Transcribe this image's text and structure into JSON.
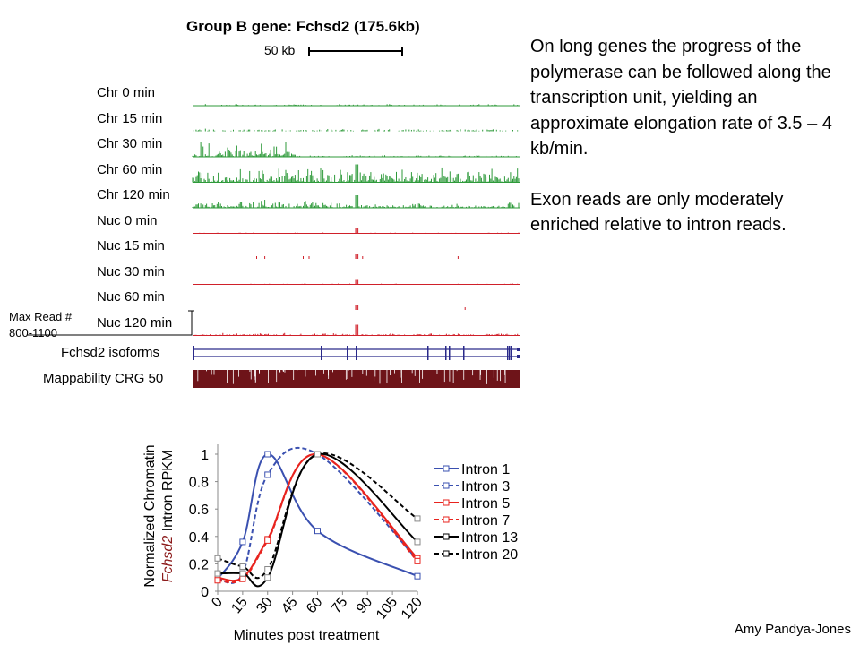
{
  "title": "Group B gene: Fchsd2 (175.6kb)",
  "scale_label": "50 kb",
  "description": [
    "On long genes the progress of the polymerase can be followed along the transcription unit, yielding an approximate elongation rate of 3.5 – 4 kb/min.",
    "Exon reads are only moderately enriched relative to intron reads."
  ],
  "tracks": [
    {
      "label": "Chr 0 min",
      "color": "#2e9a3a"
    },
    {
      "label": "Chr 15 min",
      "color": "#2e9a3a"
    },
    {
      "label": "Chr 30 min",
      "color": "#2e9a3a"
    },
    {
      "label": "Chr 60 min",
      "color": "#2e9a3a"
    },
    {
      "label": "Chr 120 min",
      "color": "#2e9a3a"
    },
    {
      "label": "Nuc 0 min",
      "color": "#d0202a"
    },
    {
      "label": "Nuc 15 min",
      "color": "#d0202a"
    },
    {
      "label": "Nuc 30 min",
      "color": "#d0202a"
    },
    {
      "label": "Nuc 60 min",
      "color": "#d0202a"
    },
    {
      "label": "Nuc 120 min",
      "color": "#d0202a"
    }
  ],
  "max_read_label": "Max Read #",
  "max_read_range": "800-1100",
  "isoforms_label": "Fchsd2 isoforms",
  "mappability_label": "Mappability CRG 50",
  "author": "Amy Pandya-Jones",
  "chart_data": {
    "type": "line",
    "ylabel_line1": "Normalized Chromatin",
    "ylabel_gene": "Fchsd2",
    "ylabel_rest": " Intron RPKM",
    "xlabel": "Minutes post treatment",
    "x": [
      0,
      15,
      30,
      60,
      120
    ],
    "xticks": [
      "0",
      "15",
      "30",
      "45",
      "60",
      "75",
      "90",
      "105",
      "120"
    ],
    "xtick_values": [
      0,
      15,
      30,
      45,
      60,
      75,
      90,
      105,
      120
    ],
    "yticks": [
      "0",
      "0.2",
      "0.4",
      "0.6",
      "0.8",
      "1"
    ],
    "ytick_values": [
      0,
      0.2,
      0.4,
      0.6,
      0.8,
      1
    ],
    "xlim": [
      0,
      120
    ],
    "ylim": [
      0,
      1.05
    ],
    "legend": "right",
    "series": [
      {
        "name": "Intron 1",
        "color": "#3a50b0",
        "dashed": false,
        "values": [
          0.09,
          0.36,
          1.0,
          0.44,
          0.11
        ]
      },
      {
        "name": "Intron 3",
        "color": "#3a50b0",
        "dashed": true,
        "values": [
          0.09,
          0.13,
          0.85,
          1.0,
          0.23
        ]
      },
      {
        "name": "Intron 5",
        "color": "#e8231e",
        "dashed": false,
        "values": [
          0.1,
          0.1,
          0.38,
          1.0,
          0.24
        ]
      },
      {
        "name": "Intron 7",
        "color": "#e8231e",
        "dashed": true,
        "values": [
          0.08,
          0.09,
          0.37,
          1.0,
          0.22
        ]
      },
      {
        "name": "Intron 13",
        "color": "#000000",
        "dashed": false,
        "values": [
          0.13,
          0.13,
          0.1,
          1.0,
          0.36
        ]
      },
      {
        "name": "Intron 20",
        "color": "#000000",
        "dashed": true,
        "values": [
          0.24,
          0.18,
          0.16,
          1.0,
          0.53
        ]
      }
    ]
  }
}
